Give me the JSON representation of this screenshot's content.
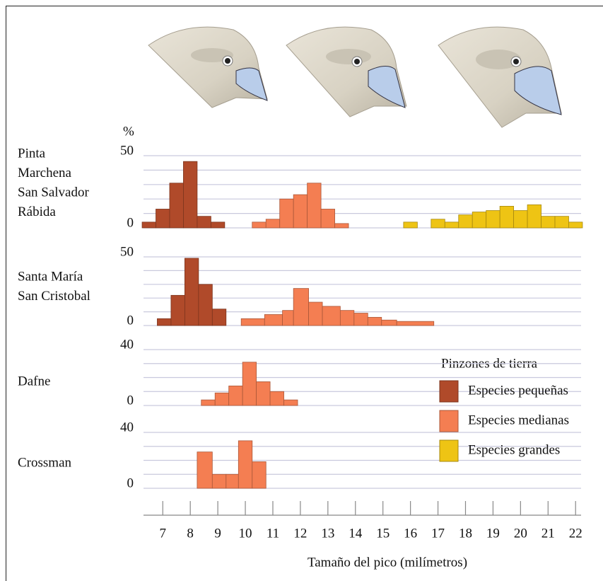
{
  "chart_data": {
    "type": "histogram",
    "y_unit": "%",
    "xlabel": "Tamaño del pico (milímetros)",
    "xlim": [
      6.3,
      22.2
    ],
    "xticks": [
      7,
      8,
      9,
      10,
      11,
      12,
      13,
      14,
      15,
      16,
      17,
      18,
      19,
      20,
      21,
      22
    ],
    "legend_title": "Pinzones de tierra",
    "panels": [
      {
        "labels": [
          "Pinta",
          "Marchena",
          "San Salvador",
          "Rábida"
        ],
        "ylim": [
          0,
          50
        ],
        "yticks": [
          0,
          50
        ],
        "grid_yticks": [
          0,
          10,
          20,
          30,
          40,
          50
        ]
      },
      {
        "labels": [
          "Santa María",
          "San Cristobal"
        ],
        "ylim": [
          0,
          50
        ],
        "yticks": [
          0,
          50
        ],
        "grid_yticks": [
          0,
          10,
          20,
          30,
          40,
          50
        ]
      },
      {
        "labels": [
          "Dafne"
        ],
        "ylim": [
          0,
          40
        ],
        "yticks": [
          0,
          40
        ],
        "grid_yticks": [
          0,
          10,
          20,
          30,
          40
        ]
      },
      {
        "labels": [
          "Crossman"
        ],
        "ylim": [
          0,
          40
        ],
        "yticks": [
          0,
          40
        ],
        "grid_yticks": [
          0,
          10,
          20,
          30,
          40
        ]
      }
    ],
    "series": [
      {
        "name": "Especies pequeñas",
        "color": "#b04a2a",
        "histograms": [
          {
            "bins": [
              6.25,
              6.75,
              7.25,
              7.75,
              8.25,
              8.75,
              9.25
            ],
            "values": [
              4,
              13,
              31,
              46,
              8,
              4
            ]
          },
          {
            "bins": [
              6.8,
              7.3,
              7.8,
              8.3,
              8.8,
              9.3
            ],
            "values": [
              5,
              22,
              49,
              30,
              12
            ]
          },
          null,
          null
        ]
      },
      {
        "name": "Especies medianas",
        "color": "#f47e52",
        "histograms": [
          {
            "bins": [
              10.25,
              10.75,
              11.25,
              11.75,
              12.25,
              12.75,
              13.25,
              13.75
            ],
            "values": [
              4,
              6,
              20,
              23,
              31,
              13,
              3
            ]
          },
          {
            "bins": [
              9.85,
              10.7,
              11.35,
              11.75,
              12.3,
              12.8,
              13.45,
              13.95,
              14.45,
              14.95,
              15.5,
              16.85
            ],
            "values": [
              5,
              8,
              11,
              27,
              17,
              14,
              11,
              9,
              6,
              4,
              3
            ]
          },
          {
            "bins": [
              8.4,
              8.9,
              9.4,
              9.9,
              10.4,
              10.9,
              11.4,
              11.9
            ],
            "values": [
              4,
              9,
              14,
              31,
              17,
              10,
              4
            ]
          },
          {
            "bins": [
              8.25,
              8.8,
              9.3,
              9.75,
              10.25,
              10.75
            ],
            "values": [
              26,
              10,
              10,
              34,
              19
            ]
          }
        ]
      },
      {
        "name": "Especies grandes",
        "color": "#eec414",
        "histograms": [
          {
            "bins": [
              15.75,
              16.25,
              16.75,
              17.25,
              17.75,
              18.25,
              18.75,
              19.25,
              19.75,
              20.25,
              20.75,
              21.25,
              21.75,
              22.25
            ],
            "values": [
              4,
              0,
              6,
              4,
              9,
              11,
              12,
              15,
              12,
              16,
              8,
              8,
              4
            ]
          },
          null,
          null,
          null
        ]
      }
    ]
  }
}
